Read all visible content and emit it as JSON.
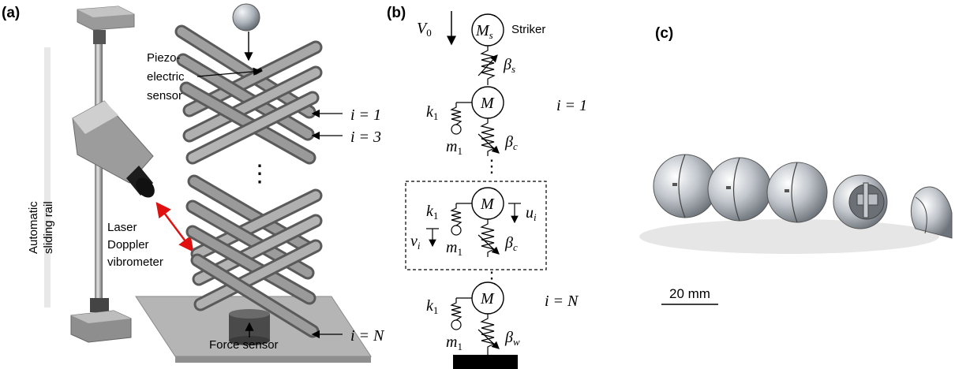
{
  "panels": {
    "a": "(a)",
    "b": "(b)",
    "c": "(c)"
  },
  "panel_a": {
    "rail_label_1": "Automatic",
    "rail_label_2": "sliding rail",
    "piezo_1": "Piezo-",
    "piezo_2": "electric",
    "piezo_3": "sensor",
    "laser_1": "Laser",
    "laser_2": "Doppler",
    "laser_3": "vibrometer",
    "force_sensor": "Force sensor",
    "idx_first": "i = 1",
    "idx_third": "i = 3",
    "idx_last": "i = N",
    "ellipsis": "⋮"
  },
  "panel_b": {
    "v0": "V",
    "v0_sub": "0",
    "ms": "M",
    "ms_sub": "s",
    "striker": "Striker",
    "beta_s": "β",
    "beta_s_sub": "s",
    "k1": "k",
    "k1_sub": "1",
    "m": "M",
    "m1": "m",
    "m1_sub": "1",
    "beta_c": "β",
    "beta_c_sub": "c",
    "beta_w": "β",
    "beta_w_sub": "w",
    "u": "u",
    "u_sub": "i",
    "v": "v",
    "v_sub": "i",
    "eq_first": "i = 1",
    "eq_last": "i = N",
    "ellipsis": "⋮"
  },
  "panel_c": {
    "scale": "20 mm"
  },
  "colors": {
    "rod": "#8a8a8a",
    "frame": "#9a9a9a",
    "highlight": "#d9d9d9",
    "laser_arrow": "#e01010",
    "base": "#b5b5b5"
  }
}
